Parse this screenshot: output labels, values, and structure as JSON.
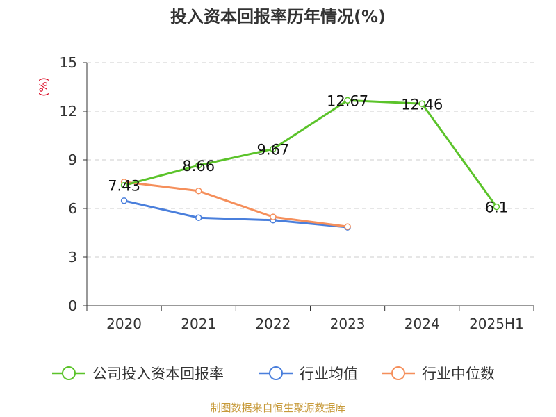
{
  "chart_data": {
    "type": "line",
    "title": "投入资本回报率历年情况(%)",
    "ylabel": "(%)",
    "xlabel": "",
    "ylim": [
      0,
      15
    ],
    "yticks": [
      0,
      3,
      6,
      9,
      12,
      15
    ],
    "categories": [
      "2020",
      "2021",
      "2022",
      "2023",
      "2024",
      "2025H1"
    ],
    "grid": true,
    "legend_position": "bottom",
    "series": [
      {
        "name": "公司投入资本回报率",
        "color": "#5bc32a",
        "values": [
          7.43,
          8.66,
          9.67,
          12.67,
          12.46,
          6.1
        ],
        "labels": [
          "7.43",
          "8.66",
          "9.67",
          "12.67",
          "12.46",
          "6.1"
        ]
      },
      {
        "name": "行业均值",
        "color": "#4a7fdc",
        "values": [
          6.48,
          5.43,
          5.28,
          4.84,
          null,
          null
        ]
      },
      {
        "name": "行业中位数",
        "color": "#f58f5b",
        "values": [
          7.64,
          7.08,
          5.48,
          4.88,
          null,
          null
        ]
      }
    ]
  },
  "footer": "制图数据来自恒生聚源数据库"
}
